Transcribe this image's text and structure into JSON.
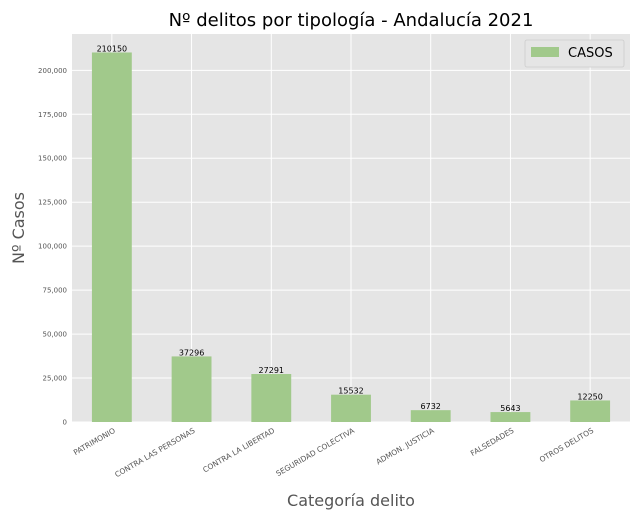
{
  "chart_data": {
    "type": "bar",
    "title": "Nº delitos por tipología - Andalucía 2021",
    "xlabel": "Categoría delito",
    "ylabel": "Nº Casos",
    "categories": [
      "PATRIMONIO",
      "CONTRA LAS PERSONAS",
      "CONTRA LA LIBERTAD",
      "SEGURIDAD COLECTIVA",
      "ADMON. JUSTICIA",
      "FALSEDADES",
      "OTROS DELITOS"
    ],
    "series": [
      {
        "name": "CASOS",
        "values": [
          210150,
          37296,
          27291,
          15532,
          6732,
          5643,
          12250
        ],
        "data_labels": [
          "210150",
          "37296",
          "27291",
          "15532",
          "6732",
          "5643",
          "12250"
        ],
        "color": "#a1c98b"
      }
    ],
    "yticks": [
      0,
      25000,
      50000,
      75000,
      100000,
      125000,
      150000,
      175000,
      200000
    ],
    "ytick_labels": [
      "0",
      "25,000",
      "50,000",
      "75,000",
      "100,000",
      "125,000",
      "150,000",
      "175,000",
      "200,000"
    ],
    "ylim": [
      0,
      220657
    ],
    "grid": true,
    "legend_position": "top-right",
    "colors": {
      "plot_background": "#e5e5e5",
      "grid": "#ffffff",
      "bar": "#a1c98b"
    }
  }
}
